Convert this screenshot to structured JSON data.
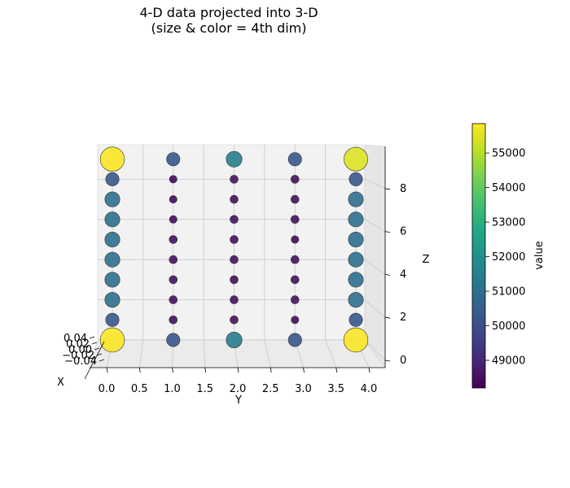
{
  "chart_data": {
    "type": "scatter",
    "projection": "3d",
    "title": [
      "4-D data projected into 3-D",
      "(size & color = 4th dim)"
    ],
    "xlabel": "X",
    "ylabel": "Y",
    "zlabel": "Z",
    "x_tick_labels": [
      "−0.04",
      "−0.02",
      "0.00",
      "0.02",
      "0.04"
    ],
    "y_ticks": [
      "0.0",
      "0.5",
      "1.0",
      "1.5",
      "2.0",
      "2.5",
      "3.0",
      "3.5",
      "4.0"
    ],
    "z_ticks": [
      "0",
      "2",
      "4",
      "6",
      "8"
    ],
    "ylim": [
      -0.1,
      4.25
    ],
    "zlim": [
      -0.45,
      9.45
    ],
    "grid": true,
    "colorbar": {
      "label": "value",
      "colormap": "viridis",
      "range": [
        48200,
        55850
      ],
      "ticks": [
        "49000",
        "50000",
        "51000",
        "52000",
        "53000",
        "54000",
        "55000"
      ]
    },
    "y": [
      0,
      1,
      2,
      3,
      4
    ],
    "z": [
      0,
      1,
      2,
      3,
      4,
      5,
      6,
      7,
      8,
      9
    ],
    "values": [
      [
        55800,
        50300,
        51400,
        50300,
        55800
      ],
      [
        50300,
        48500,
        48500,
        48400,
        50300
      ],
      [
        51000,
        48500,
        48500,
        48500,
        51000
      ],
      [
        51000,
        48500,
        48500,
        48500,
        51000
      ],
      [
        51000,
        48500,
        48500,
        48500,
        51000
      ],
      [
        51000,
        48500,
        48500,
        48400,
        51000
      ],
      [
        51000,
        48400,
        48500,
        48500,
        51000
      ],
      [
        51000,
        48400,
        48500,
        48500,
        51000
      ],
      [
        50300,
        48400,
        48500,
        48500,
        50300
      ],
      [
        55800,
        50300,
        51400,
        50300,
        55500
      ]
    ]
  }
}
